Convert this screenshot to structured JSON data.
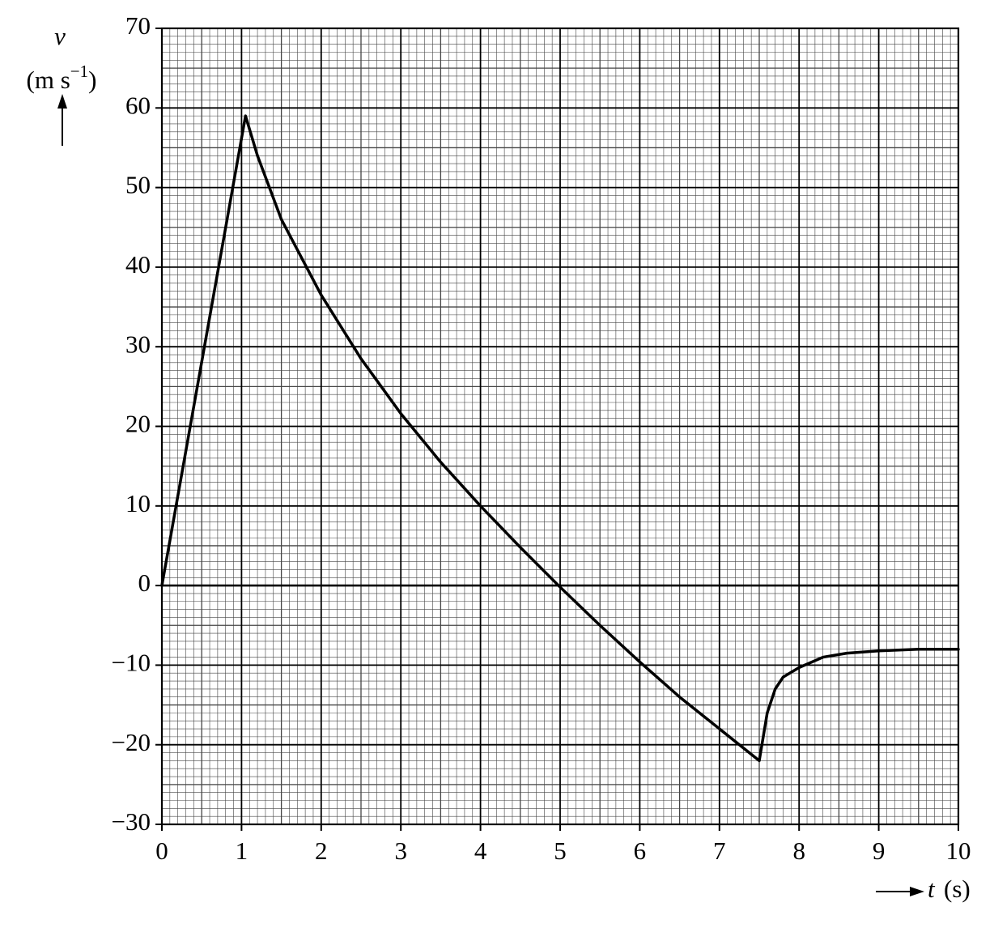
{
  "chart_data": {
    "type": "line",
    "y_label": "v",
    "y_unit": "(m s",
    "y_unit_exponent": "−1",
    "y_unit_close": ")",
    "x_label": "t",
    "x_unit": "(s)",
    "x": [
      0,
      1.05,
      1.2,
      1.5,
      2.0,
      2.5,
      3.0,
      3.5,
      4.0,
      4.5,
      5.0,
      5.5,
      6.0,
      6.5,
      7.0,
      7.5,
      7.55,
      7.6,
      7.7,
      7.8,
      8.0,
      8.3,
      8.6,
      9.0,
      9.5,
      10
    ],
    "values": [
      0,
      59,
      54,
      46,
      36.5,
      28.5,
      21.6,
      15.5,
      10,
      4.8,
      -0.2,
      -5,
      -9.6,
      -14,
      -18,
      -22,
      -19,
      -16,
      -13,
      -11.5,
      -10.3,
      -9,
      -8.5,
      -8.2,
      -8,
      -8
    ],
    "color": "#000000",
    "xlim": [
      0,
      10
    ],
    "xticks": [
      0,
      1,
      2,
      3,
      4,
      5,
      6,
      7,
      8,
      9,
      10
    ],
    "ylim": [
      -30,
      70
    ],
    "yticks": [
      {
        "value": -30,
        "label": "−30"
      },
      {
        "value": -20,
        "label": "−20"
      },
      {
        "value": -10,
        "label": "−10"
      },
      0,
      10,
      20,
      30,
      40,
      50,
      60,
      70
    ],
    "grid": true
  }
}
